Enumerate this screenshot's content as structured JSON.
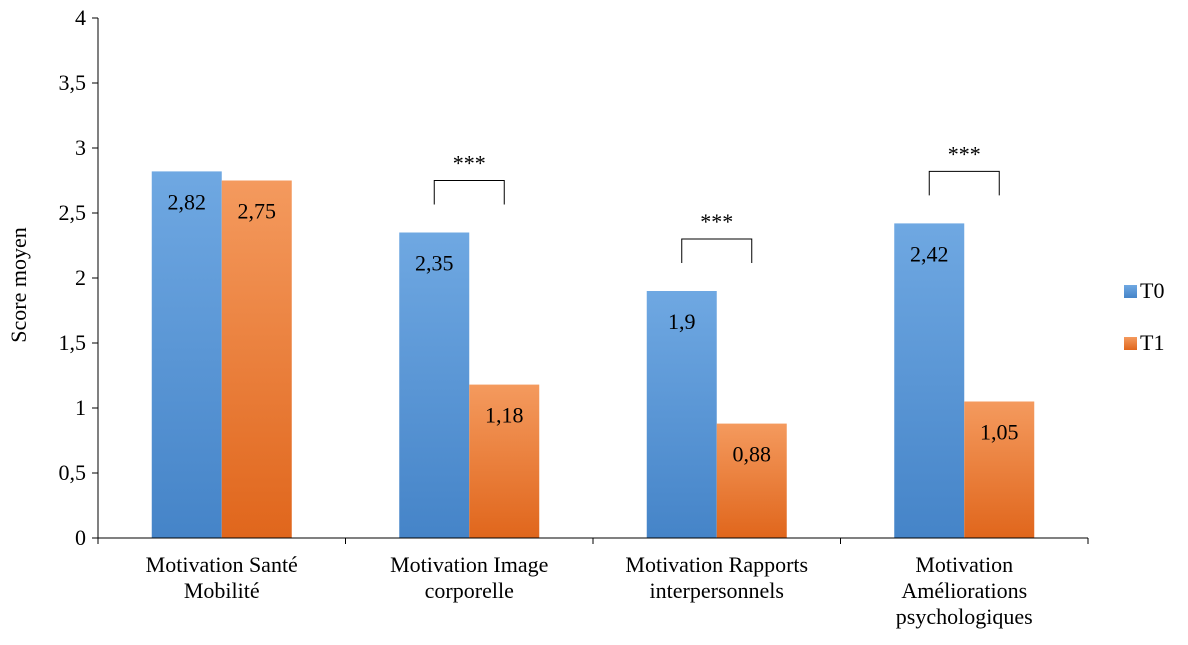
{
  "chart_data": {
    "type": "bar",
    "title": "",
    "xlabel": "",
    "ylabel": "Score moyen",
    "ylim": [
      0,
      4
    ],
    "yticks": [
      "0",
      "0,5",
      "1",
      "1,5",
      "2",
      "2,5",
      "3",
      "3,5",
      "4"
    ],
    "grid": false,
    "legend_position": "right",
    "categories": [
      [
        "Motivation Santé",
        "Mobilité"
      ],
      [
        "Motivation Image",
        "corporelle"
      ],
      [
        "Motivation Rapports",
        "interpersonnels"
      ],
      [
        "Motivation",
        "Améliorations",
        "psychologiques"
      ]
    ],
    "series": [
      {
        "name": "T0",
        "color_top": "#6fa8e2",
        "color_bottom": "#4584c8",
        "values": [
          2.82,
          2.35,
          1.9,
          2.42
        ],
        "labels": [
          "2,82",
          "2,35",
          "1,9",
          "2,42"
        ]
      },
      {
        "name": "T1",
        "color_top": "#f49a5e",
        "color_bottom": "#e0661c",
        "values": [
          2.75,
          1.18,
          0.88,
          1.05
        ],
        "labels": [
          "2,75",
          "1,18",
          "0,88",
          "1,05"
        ]
      }
    ],
    "annotations": [
      {
        "category_index": 1,
        "text": "***"
      },
      {
        "category_index": 2,
        "text": "***"
      },
      {
        "category_index": 3,
        "text": "***"
      }
    ]
  }
}
